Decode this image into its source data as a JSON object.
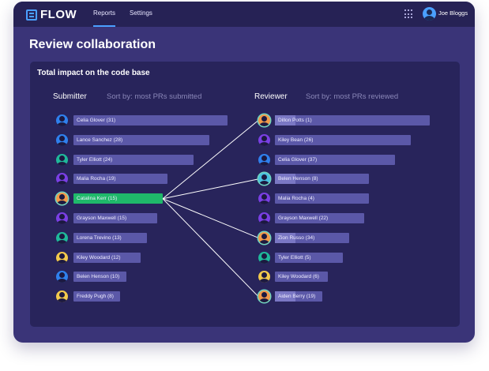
{
  "app": {
    "logo_text": "FLOW",
    "nav": [
      "Reports",
      "Settings"
    ],
    "user_name": "Joe Bloggs"
  },
  "page": {
    "title": "Review collaboration",
    "panel_title": "Total impact on the code base"
  },
  "submitter": {
    "heading": "Submitter",
    "sort_label": "Sort by: most PRs submitted",
    "items": [
      {
        "label": "Celia Glover (31)",
        "value": 31,
        "color": "#2f80ed"
      },
      {
        "label": "Lance Sanchez (28)",
        "value": 28,
        "color": "#2f80ed"
      },
      {
        "label": "Tyler Elliott (24)",
        "value": 24,
        "color": "#1fb89a"
      },
      {
        "label": "Malia Rocha (19)",
        "value": 19,
        "color": "#7a3fe4"
      },
      {
        "label": "Catalina Kerr (15)",
        "value": 15,
        "color": "#f2994a",
        "selected": true
      },
      {
        "label": "Grayson Maxwell (15)",
        "value": 15,
        "color": "#7a3fe4"
      },
      {
        "label": "Lorena Trevino (13)",
        "value": 13,
        "color": "#1fb89a"
      },
      {
        "label": "Kiley Woodard (12)",
        "value": 12,
        "color": "#f2c94c"
      },
      {
        "label": "Belen Henson (10)",
        "value": 10,
        "color": "#2f80ed"
      },
      {
        "label": "Freddy Pugh (8)",
        "value": 8,
        "color": "#f2c94c"
      }
    ]
  },
  "reviewer": {
    "heading": "Reviewer",
    "sort_label": "Sort by: most PRs reviewed",
    "items": [
      {
        "label": "Dillon Potts (1)",
        "value": 1,
        "color": "#f2994a",
        "linked": true
      },
      {
        "label": "Kiley Bean (26)",
        "value": 26,
        "color": "#7a3fe4"
      },
      {
        "label": "Celia Glover (37)",
        "value": 37,
        "color": "#2f80ed"
      },
      {
        "label": "Belen Henson (8)",
        "value": 8,
        "color": "#4ac0e0",
        "linked": true
      },
      {
        "label": "Malia Rocha (4)",
        "value": 4,
        "color": "#7a3fe4"
      },
      {
        "label": "Grayson Maxwell (22)",
        "value": 22,
        "color": "#7a3fe4"
      },
      {
        "label": "Zion Russo (34)",
        "value": 34,
        "color": "#f2994a",
        "linked": true
      },
      {
        "label": "Tyler Elliott (5)",
        "value": 5,
        "color": "#1fb89a"
      },
      {
        "label": "Kiley Woodard (6)",
        "value": 6,
        "color": "#f2c94c"
      },
      {
        "label": "Aiden Berry (19)",
        "value": 19,
        "color": "#f2994a",
        "linked": true
      }
    ]
  }
}
